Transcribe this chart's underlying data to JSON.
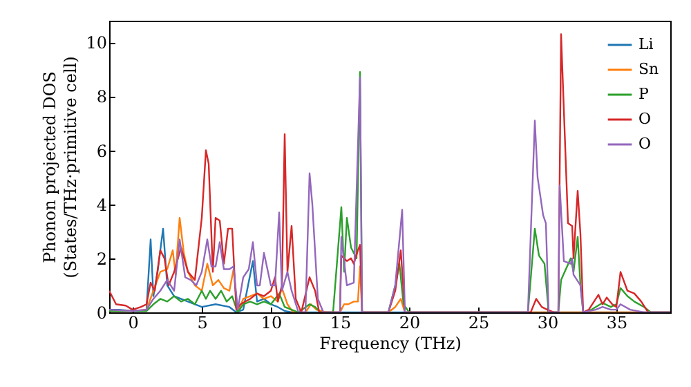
{
  "chart_data": {
    "type": "line",
    "xlabel": "Frequency (THz)",
    "ylabel": "Phonon projected DOS\n(States/THz·primitive cell)",
    "xlim": [
      -1.7,
      38.9
    ],
    "ylim": [
      0,
      10.8
    ],
    "xticks": [
      0,
      5,
      10,
      15,
      20,
      25,
      30,
      35
    ],
    "yticks": [
      0,
      2,
      4,
      6,
      8,
      10
    ],
    "legend": "top right",
    "series": [
      {
        "name": "Li",
        "color": "#1f77b4",
        "x": [
          -1.7,
          -1,
          0,
          0.5,
          1,
          1.3,
          1.5,
          1.8,
          2.2,
          2.5,
          3,
          4,
          5,
          6,
          7,
          7.5,
          8,
          8.7,
          9,
          9.5,
          10,
          10.5,
          11,
          11.5,
          38.9
        ],
        "values": [
          0.1,
          0.1,
          0.05,
          0.05,
          0.1,
          2.7,
          0.6,
          1.5,
          3.1,
          1.0,
          0.6,
          0.4,
          0.2,
          0.3,
          0.2,
          0,
          0.1,
          1.9,
          0.4,
          0.5,
          0.3,
          0.2,
          0.05,
          0,
          0
        ]
      },
      {
        "name": "Sn",
        "color": "#ff7f0e",
        "x": [
          -1.7,
          0,
          1,
          1.5,
          2,
          2.5,
          2.9,
          3.1,
          3.4,
          3.7,
          4,
          4.5,
          5,
          5.4,
          5.8,
          6.2,
          6.6,
          7,
          7.3,
          7.6,
          8,
          8.5,
          9,
          9.5,
          10,
          10.5,
          10.8,
          11.2,
          11.6,
          12.5,
          12.9,
          13.3,
          14,
          15,
          15.3,
          15.6,
          16,
          16.3,
          16.45,
          16.6,
          17,
          18.5,
          19,
          19.4,
          19.7,
          20,
          38.9
        ],
        "values": [
          0.05,
          0.05,
          0.1,
          0.8,
          1.5,
          1.6,
          2.3,
          1.4,
          3.5,
          2.2,
          1.5,
          1.0,
          0.8,
          1.8,
          1.0,
          1.2,
          0.9,
          0.8,
          1.6,
          0,
          0.5,
          0.6,
          0.7,
          0.5,
          0.6,
          0.4,
          0.9,
          0.3,
          0,
          0,
          0.3,
          0.1,
          0,
          0,
          0.3,
          0.3,
          0.4,
          0.4,
          1.7,
          0,
          0,
          0,
          0.2,
          0.5,
          0,
          0,
          0
        ]
      },
      {
        "name": "P",
        "color": "#2ca02c",
        "x": [
          -1.7,
          0,
          1,
          1.5,
          2,
          2.5,
          3,
          3.5,
          4,
          4.5,
          5,
          5.3,
          5.6,
          6,
          6.4,
          6.8,
          7.2,
          7.6,
          8,
          8.5,
          9,
          9.5,
          10,
          10.6,
          11,
          11.5,
          12,
          12.8,
          13.2,
          13.6,
          14.5,
          15.1,
          15.3,
          15.5,
          15.8,
          16.2,
          16.45,
          16.6,
          17.5,
          18.5,
          19,
          19.3,
          19.6,
          20,
          28.6,
          29.1,
          29.4,
          29.8,
          30.1,
          30.8,
          31,
          31.7,
          31.9,
          32.2,
          32.4,
          32.6,
          33.2,
          34,
          34.6,
          35,
          35.3,
          35.8,
          36.3,
          37,
          37.5,
          38.9
        ],
        "values": [
          0.05,
          0.05,
          0.05,
          0.3,
          0.5,
          0.4,
          0.6,
          0.4,
          0.5,
          0.3,
          0.8,
          0.5,
          0.8,
          0.5,
          0.8,
          0.4,
          0.6,
          0,
          0.3,
          0.4,
          0.3,
          0.4,
          0.3,
          0.7,
          0.2,
          0.1,
          0,
          0.3,
          0.2,
          0,
          0,
          3.9,
          1.5,
          3.5,
          2.4,
          2.0,
          8.9,
          0,
          0,
          0,
          1.0,
          1.8,
          0.3,
          0,
          0,
          3.1,
          2.1,
          1.8,
          0,
          0,
          1.2,
          2.0,
          1.5,
          2.8,
          1.0,
          0,
          0.1,
          0.35,
          0.2,
          0.3,
          0.9,
          0.6,
          0.4,
          0.2,
          0,
          0
        ]
      },
      {
        "name": "O",
        "color": "#d62728",
        "x": [
          -1.7,
          -1.2,
          -0.5,
          0,
          0.6,
          1,
          1.3,
          1.6,
          2,
          2.3,
          2.6,
          3,
          3.5,
          4,
          4.5,
          5,
          5.3,
          5.5,
          5.8,
          6,
          6.3,
          6.6,
          6.9,
          7.2,
          7.5,
          7.8,
          8.5,
          9,
          9.5,
          10,
          10.3,
          10.5,
          10.8,
          11,
          11.2,
          11.5,
          11.8,
          12.2,
          12.8,
          13.2,
          13.5,
          14,
          15,
          15.1,
          15.5,
          15.8,
          16,
          16.3,
          16.45,
          16.6,
          17.5,
          18.5,
          19,
          19.4,
          19.7,
          20,
          28.8,
          29.2,
          29.6,
          30,
          30.5,
          30.8,
          31,
          31.5,
          31.8,
          31.9,
          32.2,
          32.4,
          32.6,
          33,
          33.7,
          34,
          34.3,
          34.7,
          35,
          35.3,
          35.8,
          36.3,
          36.8,
          37.3,
          38.9
        ],
        "values": [
          0.8,
          0.3,
          0.25,
          0.1,
          0.2,
          0.3,
          1.1,
          0.8,
          2.3,
          2.0,
          1.0,
          1.5,
          2.4,
          1.5,
          1.2,
          3.5,
          6.0,
          5.5,
          1.5,
          3.5,
          3.4,
          1.8,
          3.1,
          3.1,
          0.1,
          0.3,
          0.5,
          0.7,
          0.6,
          0.8,
          1.3,
          0.4,
          1.0,
          6.6,
          1.5,
          3.2,
          0.5,
          0,
          1.3,
          0.8,
          0,
          0,
          0,
          2.1,
          1.9,
          2.0,
          1.8,
          2.3,
          2.5,
          0,
          0,
          0,
          0.8,
          2.3,
          0,
          0,
          0,
          0.5,
          0.2,
          0.1,
          0,
          0,
          10.3,
          3.3,
          3.2,
          2.0,
          4.5,
          2.9,
          0,
          0.1,
          0.65,
          0.3,
          0.55,
          0.3,
          0.2,
          1.5,
          0.8,
          0.7,
          0.4,
          0,
          0
        ]
      },
      {
        "name": "O",
        "color": "#9467bd",
        "x": [
          -1.7,
          0,
          1,
          1.5,
          2,
          2.5,
          3,
          3.4,
          3.8,
          4.2,
          4.6,
          5,
          5.4,
          5.7,
          6,
          6.3,
          6.6,
          7,
          7.3,
          7.6,
          8,
          8.4,
          8.7,
          9,
          9.2,
          9.5,
          10,
          10.3,
          10.6,
          10.8,
          11.2,
          11.5,
          12,
          12.5,
          12.8,
          13,
          13.4,
          13.8,
          15,
          15.1,
          15.5,
          16,
          16.45,
          16.6,
          18.5,
          19,
          19.5,
          19.7,
          28.6,
          29.1,
          29.3,
          29.7,
          29.9,
          30.1,
          30.8,
          30.9,
          31.2,
          31.7,
          31.8,
          31.9,
          32.4,
          32.6,
          33.5,
          34,
          34.6,
          35,
          35.3,
          36,
          37,
          38.9
        ],
        "values": [
          0.1,
          0.05,
          0.1,
          0.5,
          0.8,
          1.2,
          0.8,
          2.7,
          1.3,
          1.2,
          1.0,
          1.5,
          2.7,
          1.7,
          1.7,
          2.6,
          1.6,
          1.6,
          1.7,
          0.1,
          1.3,
          1.6,
          2.6,
          1.0,
          1.0,
          2.2,
          1.0,
          1.0,
          3.7,
          0.8,
          1.5,
          0.8,
          0,
          0,
          5.15,
          4.0,
          0.5,
          0,
          0,
          2.8,
          1.0,
          1.1,
          8.7,
          0,
          0,
          1.0,
          3.8,
          0,
          0,
          7.1,
          5.0,
          3.6,
          3.3,
          0,
          0,
          4.7,
          1.9,
          1.8,
          2.0,
          1.4,
          1.0,
          0,
          0.1,
          0.2,
          0.1,
          0.1,
          0.3,
          0.1,
          0,
          0
        ]
      }
    ]
  }
}
